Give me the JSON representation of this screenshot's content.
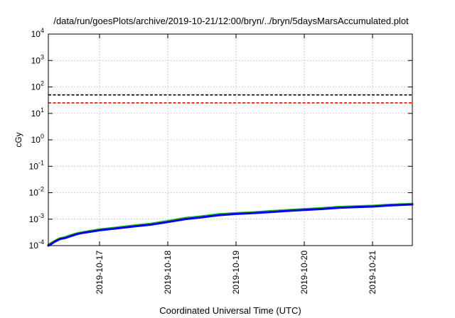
{
  "chart_data": {
    "type": "line",
    "title": "/data/run/goesPlots/archive/2019-10-21/12:00/bryn/../bryn/5daysMarsAccumulated.plot",
    "xlabel": "Coordinated Universal Time (UTC)",
    "ylabel": "cGy",
    "yscale": "log",
    "ylim": [
      0.0001,
      10000
    ],
    "xlim": [
      "2019-10-16T06:00",
      "2019-10-21T14:00"
    ],
    "grid": true,
    "x_ticks": [
      "2019-10-17",
      "2019-10-18",
      "2019-10-19",
      "2019-10-20",
      "2019-10-21"
    ],
    "y_ticks": [
      {
        "base": "10",
        "exp": "4",
        "value": 10000
      },
      {
        "base": "10",
        "exp": "3",
        "value": 1000
      },
      {
        "base": "10",
        "exp": "2",
        "value": 100
      },
      {
        "base": "10",
        "exp": "1",
        "value": 10
      },
      {
        "base": "10",
        "exp": "0",
        "value": 1
      },
      {
        "base": "10",
        "exp": "-1",
        "value": 0.1
      },
      {
        "base": "10",
        "exp": "-2",
        "value": 0.01
      },
      {
        "base": "10",
        "exp": "-3",
        "value": 0.001
      },
      {
        "base": "10",
        "exp": "-4",
        "value": 0.0001
      }
    ],
    "reference_lines": [
      {
        "value": 50,
        "color": "#000000",
        "style": "dashed"
      },
      {
        "value": 25,
        "color": "#ff0000",
        "style": "dashed"
      }
    ],
    "series": [
      {
        "color": "#22bb22",
        "x": [
          "2019-10-16T06:00",
          "2019-10-16T07:00",
          "2019-10-16T08:00",
          "2019-10-16T09:00",
          "2019-10-16T10:00",
          "2019-10-16T12:00",
          "2019-10-16T14:00",
          "2019-10-16T16:00",
          "2019-10-16T18:00",
          "2019-10-17T00:00",
          "2019-10-17T06:00",
          "2019-10-17T12:00",
          "2019-10-17T18:00",
          "2019-10-18T00:00",
          "2019-10-18T06:00",
          "2019-10-18T12:00",
          "2019-10-18T18:00",
          "2019-10-19T00:00",
          "2019-10-19T06:00",
          "2019-10-19T12:00",
          "2019-10-19T18:00",
          "2019-10-20T00:00",
          "2019-10-20T06:00",
          "2019-10-20T12:00",
          "2019-10-20T18:00",
          "2019-10-21T00:00",
          "2019-10-21T06:00",
          "2019-10-21T14:00"
        ],
        "y": [
          0.000105,
          0.000125,
          0.000145,
          0.000165,
          0.000185,
          0.00021,
          0.00025,
          0.00029,
          0.00032,
          0.00041,
          0.00048,
          0.00057,
          0.00067,
          0.00085,
          0.0011,
          0.00128,
          0.00155,
          0.0017,
          0.00182,
          0.002,
          0.0022,
          0.0024,
          0.0026,
          0.0029,
          0.00305,
          0.0032,
          0.0035,
          0.0038
        ]
      },
      {
        "color": "#0000ee",
        "x": [
          "2019-10-16T06:00",
          "2019-10-16T07:00",
          "2019-10-16T08:00",
          "2019-10-16T09:00",
          "2019-10-16T10:00",
          "2019-10-16T12:00",
          "2019-10-16T14:00",
          "2019-10-16T16:00",
          "2019-10-16T18:00",
          "2019-10-17T00:00",
          "2019-10-17T06:00",
          "2019-10-17T12:00",
          "2019-10-17T18:00",
          "2019-10-18T00:00",
          "2019-10-18T06:00",
          "2019-10-18T12:00",
          "2019-10-18T18:00",
          "2019-10-19T00:00",
          "2019-10-19T06:00",
          "2019-10-19T12:00",
          "2019-10-19T18:00",
          "2019-10-20T00:00",
          "2019-10-20T06:00",
          "2019-10-20T12:00",
          "2019-10-20T18:00",
          "2019-10-21T00:00",
          "2019-10-21T06:00",
          "2019-10-21T14:00"
        ],
        "y": [
          0.0001,
          0.000115,
          0.000135,
          0.000155,
          0.000175,
          0.000195,
          0.00023,
          0.00027,
          0.0003,
          0.00038,
          0.00045,
          0.00053,
          0.00062,
          0.00078,
          0.001,
          0.00118,
          0.00142,
          0.00158,
          0.0017,
          0.00185,
          0.00205,
          0.00222,
          0.00242,
          0.0027,
          0.00285,
          0.003,
          0.0033,
          0.0036
        ]
      }
    ]
  }
}
